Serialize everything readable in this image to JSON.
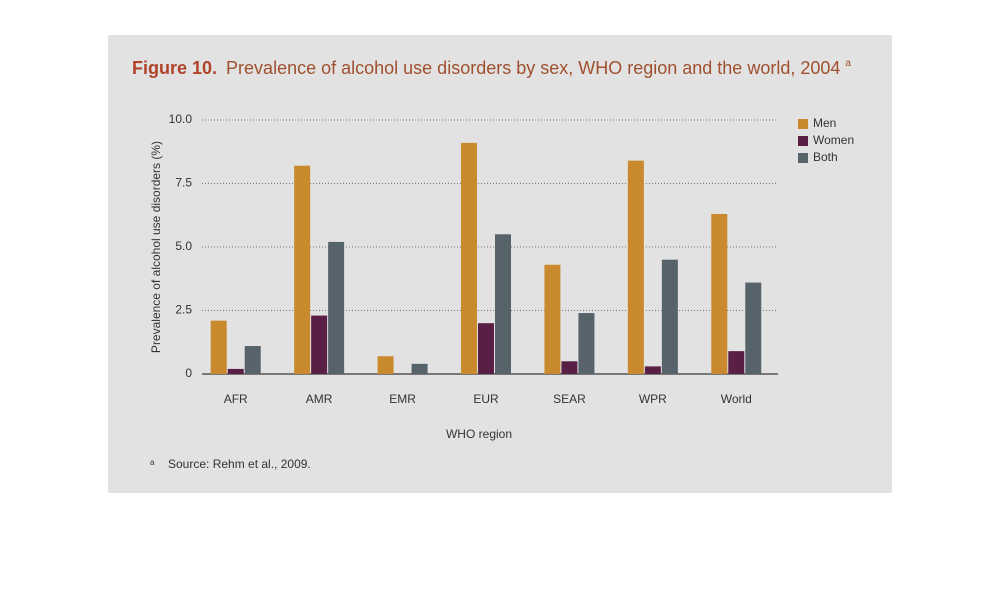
{
  "chart_data": {
    "type": "bar",
    "figure_label": "Figure 10.",
    "title": "Prevalence of alcohol use disorders by sex, WHO region and the world, 2004",
    "title_marker": "a",
    "y_label": "Prevalence of alcohol use disorders (%)",
    "x_label": "WHO region",
    "categories": [
      "AFR",
      "AMR",
      "EMR",
      "EUR",
      "SEAR",
      "WPR",
      "World"
    ],
    "series": [
      {
        "name": "Men",
        "color": "#c98a2e",
        "values": [
          2.1,
          8.2,
          0.7,
          9.1,
          4.3,
          8.4,
          6.3
        ]
      },
      {
        "name": "Women",
        "color": "#5a1f45",
        "values": [
          0.2,
          2.3,
          0,
          2.0,
          0.5,
          0.3,
          0.9
        ]
      },
      {
        "name": "Both",
        "color": "#56636b",
        "values": [
          1.1,
          5.2,
          0.4,
          5.5,
          2.4,
          4.5,
          3.6
        ]
      }
    ],
    "ylim": [
      0,
      10
    ],
    "yticks": [
      0,
      2.5,
      {
        "value": 5,
        "label": "5.0"
      },
      7.5,
      {
        "value": 10,
        "label": "10.0"
      }
    ],
    "grid": true,
    "legend": "top-right",
    "footnote_marker": "a",
    "footnote": "Source: Rehm et al., 2009."
  }
}
